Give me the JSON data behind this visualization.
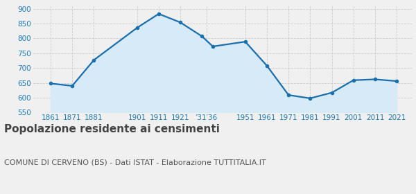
{
  "years": [
    1861,
    1871,
    1881,
    1901,
    1911,
    1921,
    1931,
    1936,
    1951,
    1961,
    1971,
    1981,
    1991,
    2001,
    2011,
    2021
  ],
  "values": [
    648,
    640,
    727,
    836,
    883,
    854,
    807,
    773,
    789,
    708,
    609,
    598,
    617,
    659,
    662,
    656
  ],
  "line_color": "#1a6faf",
  "fill_color": "#d6eaf8",
  "marker_color": "#1a6faf",
  "background_color": "#f0f0f0",
  "plot_bg_color": "#f0f0f0",
  "grid_color": "#cccccc",
  "ylim": [
    550,
    910
  ],
  "yticks": [
    550,
    600,
    650,
    700,
    750,
    800,
    850,
    900
  ],
  "xlim_min": 1853,
  "xlim_max": 2028,
  "shown_positions": [
    1861,
    1871,
    1881,
    1901,
    1911,
    1921,
    1933,
    1951,
    1961,
    1971,
    1981,
    1991,
    2001,
    2011,
    2021
  ],
  "shown_labels": [
    "1861",
    "1871",
    "1881",
    "1901",
    "1911",
    "1921",
    "’31′36",
    "1951",
    "1961",
    "1971",
    "1981",
    "1991",
    "2001",
    "2011",
    "2021"
  ],
  "tick_label_color": "#1a7abf",
  "title": "Popolazione residente ai censimenti",
  "subtitle": "COMUNE DI CERVENO (BS) - Dati ISTAT - Elaborazione TUTTITALIA.IT",
  "title_fontsize": 11,
  "subtitle_fontsize": 8,
  "title_color": "#444444",
  "subtitle_color": "#555555"
}
